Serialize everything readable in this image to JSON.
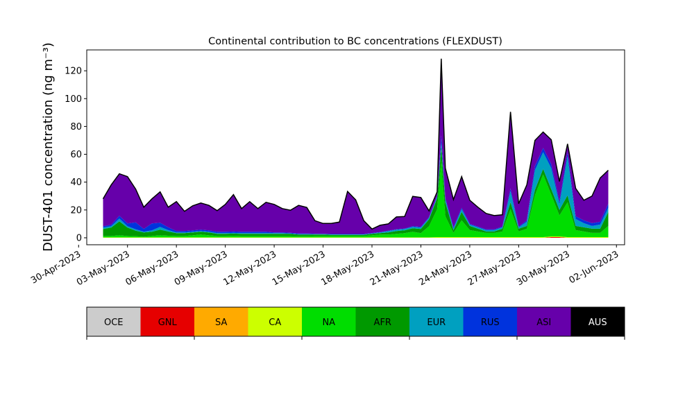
{
  "chart_data": {
    "type": "area",
    "stacked": true,
    "title": "Continental contribution to BC concentrations (FLEXDUST)",
    "ylabel": "DUST-401 concentration (ng m⁻³)",
    "xlabel": "",
    "ylim": [
      -5,
      135
    ],
    "xlim": [
      "2023-04-30T12:00",
      "2023-06-02T12:00"
    ],
    "yticks": [
      0,
      20,
      40,
      60,
      80,
      100,
      120
    ],
    "xticks": [
      "30-Apr-2023",
      "03-May-2023",
      "06-May-2023",
      "09-May-2023",
      "12-May-2023",
      "15-May-2023",
      "18-May-2023",
      "21-May-2023",
      "24-May-2023",
      "27-May-2023",
      "30-May-2023",
      "02-Jun-2023"
    ],
    "x": [
      "2023-05-01T12:00",
      "2023-05-02T00:00",
      "2023-05-02T12:00",
      "2023-05-03T00:00",
      "2023-05-03T12:00",
      "2023-05-04T00:00",
      "2023-05-04T12:00",
      "2023-05-05T00:00",
      "2023-05-05T12:00",
      "2023-05-06T00:00",
      "2023-05-06T12:00",
      "2023-05-07T00:00",
      "2023-05-07T12:00",
      "2023-05-08T00:00",
      "2023-05-08T12:00",
      "2023-05-09T00:00",
      "2023-05-09T12:00",
      "2023-05-10T00:00",
      "2023-05-10T12:00",
      "2023-05-11T00:00",
      "2023-05-11T12:00",
      "2023-05-12T00:00",
      "2023-05-12T12:00",
      "2023-05-13T00:00",
      "2023-05-13T12:00",
      "2023-05-14T00:00",
      "2023-05-14T12:00",
      "2023-05-15T00:00",
      "2023-05-15T12:00",
      "2023-05-16T00:00",
      "2023-05-16T12:00",
      "2023-05-17T00:00",
      "2023-05-17T12:00",
      "2023-05-18T00:00",
      "2023-05-18T12:00",
      "2023-05-19T00:00",
      "2023-05-19T12:00",
      "2023-05-20T00:00",
      "2023-05-20T12:00",
      "2023-05-21T00:00",
      "2023-05-21T12:00",
      "2023-05-22T00:00",
      "2023-05-22T06:00",
      "2023-05-22T12:00",
      "2023-05-23T00:00",
      "2023-05-23T12:00",
      "2023-05-24T00:00",
      "2023-05-24T12:00",
      "2023-05-25T00:00",
      "2023-05-25T12:00",
      "2023-05-26T00:00",
      "2023-05-26T12:00",
      "2023-05-27T00:00",
      "2023-05-27T12:00",
      "2023-05-28T00:00",
      "2023-05-28T12:00",
      "2023-05-29T00:00",
      "2023-05-29T12:00",
      "2023-05-30T00:00",
      "2023-05-30T12:00",
      "2023-05-31T00:00",
      "2023-05-31T12:00",
      "2023-06-01T00:00",
      "2023-06-01T12:00"
    ],
    "series": [
      {
        "name": "OCE",
        "color": "#cccccc",
        "values": [
          0,
          0,
          0,
          0,
          0,
          0,
          0,
          0,
          0,
          0,
          0,
          0,
          0,
          0,
          0,
          0,
          0,
          0,
          0,
          0,
          0,
          0,
          0,
          0,
          0,
          0,
          0,
          0,
          0,
          0,
          0,
          0,
          0,
          0,
          0,
          0,
          0,
          0,
          0,
          0,
          0,
          0,
          0,
          0,
          0,
          0,
          0,
          0,
          0,
          0,
          0,
          0,
          0,
          0,
          0,
          0,
          0,
          0,
          0,
          0,
          0,
          0,
          0,
          0
        ]
      },
      {
        "name": "GNL",
        "color": "#e60000",
        "values": [
          0,
          0,
          0,
          0,
          0,
          0,
          0,
          0,
          0,
          0,
          0,
          0,
          0,
          0,
          0,
          0,
          0,
          0,
          0,
          0,
          0,
          0,
          0,
          0,
          0,
          0,
          0,
          0,
          0,
          0,
          0,
          0,
          0,
          0,
          0,
          0,
          0,
          0,
          0,
          0,
          0,
          0,
          0,
          0,
          0,
          0,
          0,
          0,
          0,
          0,
          0,
          0,
          0,
          0,
          0,
          0,
          0.5,
          0.5,
          0,
          0,
          0,
          0,
          0,
          0
        ]
      },
      {
        "name": "SA",
        "color": "#ffaa00",
        "values": [
          0,
          0,
          0,
          0,
          0,
          0,
          0,
          0,
          0,
          0,
          0,
          0,
          0,
          0,
          0,
          0,
          0,
          0,
          0,
          0,
          0,
          0,
          0,
          0,
          0,
          0,
          0,
          0,
          0,
          0,
          0,
          0,
          0,
          0,
          0,
          0,
          0,
          0,
          0,
          0,
          0,
          0,
          0,
          0,
          0,
          0,
          0,
          0,
          0,
          0,
          0,
          0,
          0,
          0,
          0,
          0,
          0,
          0,
          0,
          0,
          0,
          0,
          0,
          0
        ]
      },
      {
        "name": "CA",
        "color": "#ccff00",
        "values": [
          0.3,
          0.3,
          0.3,
          0.3,
          0.3,
          0.3,
          0.3,
          0.3,
          0.3,
          0.3,
          0.3,
          0.3,
          0.3,
          0.3,
          0.3,
          0.3,
          0.3,
          0.3,
          0.3,
          0.3,
          0.3,
          0.3,
          0.3,
          0.3,
          0.3,
          0.3,
          0.3,
          0.3,
          0.3,
          0.3,
          0.3,
          0.3,
          0.3,
          0.3,
          0.3,
          0.3,
          0.3,
          0.3,
          0.3,
          0.3,
          0.3,
          0.5,
          0.5,
          0.5,
          0.5,
          0.5,
          0.5,
          0.5,
          0.5,
          0.5,
          0.5,
          0.5,
          0.5,
          0.5,
          0.5,
          0.5,
          0.5,
          0.5,
          0.5,
          0.5,
          0.5,
          0.5,
          0.5,
          0.5
        ]
      },
      {
        "name": "NA",
        "color": "#00dd00",
        "values": [
          1,
          1,
          1.5,
          1,
          0.8,
          0.5,
          1,
          1.5,
          1.2,
          1,
          1,
          1.5,
          2,
          1.5,
          1,
          1,
          1.2,
          1,
          1,
          1,
          1,
          1,
          1,
          1,
          0.8,
          0.8,
          1,
          1,
          1,
          1,
          1,
          1,
          1,
          1.5,
          2,
          2,
          2.5,
          3,
          4,
          3,
          8,
          20,
          55,
          15,
          3,
          12,
          5,
          4,
          3,
          3,
          4,
          20,
          4,
          6,
          30,
          45,
          30,
          15,
          25,
          5,
          4,
          3,
          3,
          8
        ]
      },
      {
        "name": "AFR",
        "color": "#009900",
        "values": [
          5,
          6,
          10,
          6,
          4,
          3,
          3,
          4,
          3,
          2,
          2,
          2,
          2,
          2,
          1.5,
          1.5,
          1.5,
          1.5,
          1.5,
          1.5,
          1.5,
          1.5,
          1.5,
          1.5,
          1.2,
          1.2,
          1,
          1,
          0.8,
          0.8,
          0.8,
          0.8,
          0.8,
          1,
          1,
          1.5,
          2,
          2,
          2.5,
          3,
          5,
          8,
          10,
          10,
          2,
          6,
          3,
          2,
          1,
          1,
          2,
          5,
          2,
          2,
          4,
          4,
          4,
          4,
          5,
          3,
          3,
          3,
          3,
          10
        ]
      },
      {
        "name": "EUR",
        "color": "#00a0c0",
        "values": [
          1,
          1,
          2,
          1,
          1,
          0.5,
          1,
          2,
          1,
          0.5,
          0.5,
          0.5,
          0.5,
          0.5,
          0.5,
          0.5,
          0.5,
          0.5,
          0.5,
          0.5,
          0.5,
          0.5,
          0.5,
          0.3,
          0.3,
          0.3,
          0.3,
          0.3,
          0.3,
          0.3,
          0.3,
          0.3,
          0.3,
          0.3,
          0.5,
          1,
          1,
          1,
          1,
          1,
          1,
          1,
          3,
          2,
          1,
          2,
          1,
          1,
          1,
          1,
          1,
          8,
          1,
          3,
          14,
          12,
          15,
          4,
          28,
          5,
          3,
          2,
          3,
          3
        ]
      },
      {
        "name": "RUS",
        "color": "#0033dd",
        "values": [
          1,
          1,
          2,
          2,
          5,
          2,
          5,
          3,
          2,
          1,
          1,
          1,
          1,
          1,
          1,
          1,
          1,
          1,
          1,
          1,
          1,
          0.5,
          0.5,
          0.5,
          0.5,
          0.5,
          0.3,
          0.3,
          0.3,
          0.3,
          0.3,
          0.3,
          0.3,
          0.3,
          0.3,
          0.3,
          0.3,
          0.3,
          0.5,
          0.5,
          0.5,
          0.5,
          5,
          1,
          1,
          1,
          0.5,
          0.5,
          0.5,
          0.5,
          0.5,
          2,
          0.5,
          1,
          3,
          3,
          3,
          2,
          3,
          2,
          2,
          2,
          2,
          3
        ]
      },
      {
        "name": "ASI",
        "color": "#6600aa",
        "values": [
          19.7,
          28.7,
          30.2,
          33.7,
          23.9,
          15.7,
          17.7,
          22.2,
          14.5,
          21.2,
          14.2,
          17.7,
          19.2,
          18.0,
          15.2,
          19.7,
          26.5,
          16.7,
          21.7,
          16.7,
          21.2,
          20.2,
          17.2,
          16.2,
          20.2,
          18.7,
          9.4,
          7.4,
          7.6,
          8.6,
          30.6,
          24.6,
          9.6,
          2.9,
          4.9,
          4.9,
          8.9,
          8.7,
          21.5,
          21.2,
          4.5,
          3.0,
          55.2,
          21.5,
          20.0,
          22.5,
          17.0,
          14.0,
          11.5,
          10.0,
          8.5,
          55.0,
          16.5,
          25.5,
          18.5,
          11.5,
          17.5,
          14.5,
          6.0,
          20.0,
          14.5,
          19.5,
          31.5,
          24.0
        ]
      },
      {
        "name": "AUS",
        "color": "#000000",
        "values": [
          0,
          0,
          0,
          0,
          0,
          0,
          0,
          0,
          0,
          0,
          0,
          0,
          0,
          0,
          0,
          0,
          0,
          0,
          0,
          0,
          0,
          0,
          0,
          0,
          0,
          0,
          0,
          0,
          0,
          0,
          0,
          0,
          0,
          0,
          0,
          0,
          0,
          0,
          0,
          0,
          0,
          0,
          0,
          0,
          0,
          0,
          0,
          0,
          0,
          0,
          0,
          0,
          0,
          0,
          0,
          0,
          0,
          0,
          0,
          0,
          0,
          0,
          0,
          0
        ]
      }
    ],
    "legend": {
      "placement": "bottom",
      "items": [
        "OCE",
        "GNL",
        "SA",
        "CA",
        "NA",
        "AFR",
        "EUR",
        "RUS",
        "ASI",
        "AUS"
      ]
    }
  }
}
